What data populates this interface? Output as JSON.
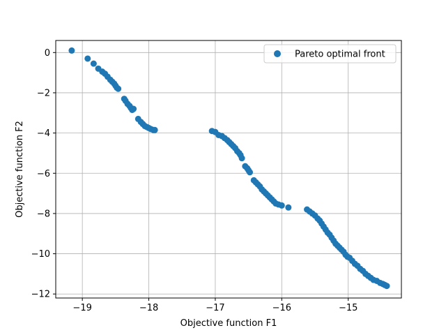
{
  "chart_data": {
    "type": "scatter",
    "title": "",
    "xlabel": "Objective function F1",
    "ylabel": "Objective function F2",
    "xlim": [
      -19.4,
      -14.2
    ],
    "ylim": [
      -12.2,
      0.6
    ],
    "xticks": [
      -19,
      -18,
      -17,
      -16,
      -15
    ],
    "yticks": [
      0,
      -2,
      -4,
      -6,
      -8,
      -10,
      -12
    ],
    "xtick_labels": [
      "−19",
      "−18",
      "−17",
      "−16",
      "−15"
    ],
    "ytick_labels": [
      "0",
      "−2",
      "−4",
      "−6",
      "−8",
      "−10",
      "−12"
    ],
    "grid": true,
    "legend": {
      "position": "top-right"
    },
    "series": [
      {
        "name": "Pareto optimal front",
        "color": "#1f77b4",
        "marker": "circle",
        "points": [
          [
            -19.16,
            0.1
          ],
          [
            -18.92,
            -0.3
          ],
          [
            -18.83,
            -0.55
          ],
          [
            -18.76,
            -0.8
          ],
          [
            -18.7,
            -0.95
          ],
          [
            -18.66,
            -1.05
          ],
          [
            -18.62,
            -1.2
          ],
          [
            -18.58,
            -1.35
          ],
          [
            -18.55,
            -1.45
          ],
          [
            -18.52,
            -1.55
          ],
          [
            -18.5,
            -1.65
          ],
          [
            -18.48,
            -1.75
          ],
          [
            -18.46,
            -1.8
          ],
          [
            -18.37,
            -2.3
          ],
          [
            -18.35,
            -2.4
          ],
          [
            -18.32,
            -2.55
          ],
          [
            -18.29,
            -2.65
          ],
          [
            -18.27,
            -2.75
          ],
          [
            -18.25,
            -2.85
          ],
          [
            -18.23,
            -2.8
          ],
          [
            -18.16,
            -3.3
          ],
          [
            -18.12,
            -3.45
          ],
          [
            -18.09,
            -3.55
          ],
          [
            -18.06,
            -3.65
          ],
          [
            -18.03,
            -3.7
          ],
          [
            -18.0,
            -3.75
          ],
          [
            -17.97,
            -3.8
          ],
          [
            -17.93,
            -3.85
          ],
          [
            -17.91,
            -3.85
          ],
          [
            -17.05,
            -3.9
          ],
          [
            -17.0,
            -3.95
          ],
          [
            -16.95,
            -4.1
          ],
          [
            -16.9,
            -4.15
          ],
          [
            -16.86,
            -4.25
          ],
          [
            -16.82,
            -4.35
          ],
          [
            -16.79,
            -4.45
          ],
          [
            -16.76,
            -4.55
          ],
          [
            -16.73,
            -4.65
          ],
          [
            -16.7,
            -4.75
          ],
          [
            -16.67,
            -4.9
          ],
          [
            -16.64,
            -5.0
          ],
          [
            -16.62,
            -5.1
          ],
          [
            -16.6,
            -5.25
          ],
          [
            -16.55,
            -5.65
          ],
          [
            -16.52,
            -5.75
          ],
          [
            -16.5,
            -5.85
          ],
          [
            -16.48,
            -5.95
          ],
          [
            -16.42,
            -6.35
          ],
          [
            -16.39,
            -6.45
          ],
          [
            -16.36,
            -6.55
          ],
          [
            -16.33,
            -6.65
          ],
          [
            -16.3,
            -6.8
          ],
          [
            -16.27,
            -6.9
          ],
          [
            -16.24,
            -7.0
          ],
          [
            -16.21,
            -7.1
          ],
          [
            -16.18,
            -7.2
          ],
          [
            -16.15,
            -7.3
          ],
          [
            -16.12,
            -7.4
          ],
          [
            -16.09,
            -7.5
          ],
          [
            -16.05,
            -7.55
          ],
          [
            -16.0,
            -7.6
          ],
          [
            -15.9,
            -7.7
          ],
          [
            -15.62,
            -7.8
          ],
          [
            -15.58,
            -7.9
          ],
          [
            -15.54,
            -8.0
          ],
          [
            -15.5,
            -8.1
          ],
          [
            -15.46,
            -8.25
          ],
          [
            -15.43,
            -8.35
          ],
          [
            -15.4,
            -8.5
          ],
          [
            -15.37,
            -8.65
          ],
          [
            -15.34,
            -8.8
          ],
          [
            -15.31,
            -8.95
          ],
          [
            -15.28,
            -9.05
          ],
          [
            -15.25,
            -9.2
          ],
          [
            -15.22,
            -9.35
          ],
          [
            -15.19,
            -9.5
          ],
          [
            -15.16,
            -9.6
          ],
          [
            -15.13,
            -9.7
          ],
          [
            -15.1,
            -9.8
          ],
          [
            -15.07,
            -9.9
          ],
          [
            -15.04,
            -10.05
          ],
          [
            -15.01,
            -10.15
          ],
          [
            -14.98,
            -10.2
          ],
          [
            -14.94,
            -10.35
          ],
          [
            -14.9,
            -10.5
          ],
          [
            -14.86,
            -10.6
          ],
          [
            -14.82,
            -10.75
          ],
          [
            -14.78,
            -10.85
          ],
          [
            -14.74,
            -11.0
          ],
          [
            -14.7,
            -11.1
          ],
          [
            -14.66,
            -11.2
          ],
          [
            -14.62,
            -11.3
          ],
          [
            -14.57,
            -11.35
          ],
          [
            -14.52,
            -11.45
          ],
          [
            -14.48,
            -11.5
          ],
          [
            -14.45,
            -11.55
          ],
          [
            -14.42,
            -11.6
          ]
        ]
      }
    ]
  }
}
